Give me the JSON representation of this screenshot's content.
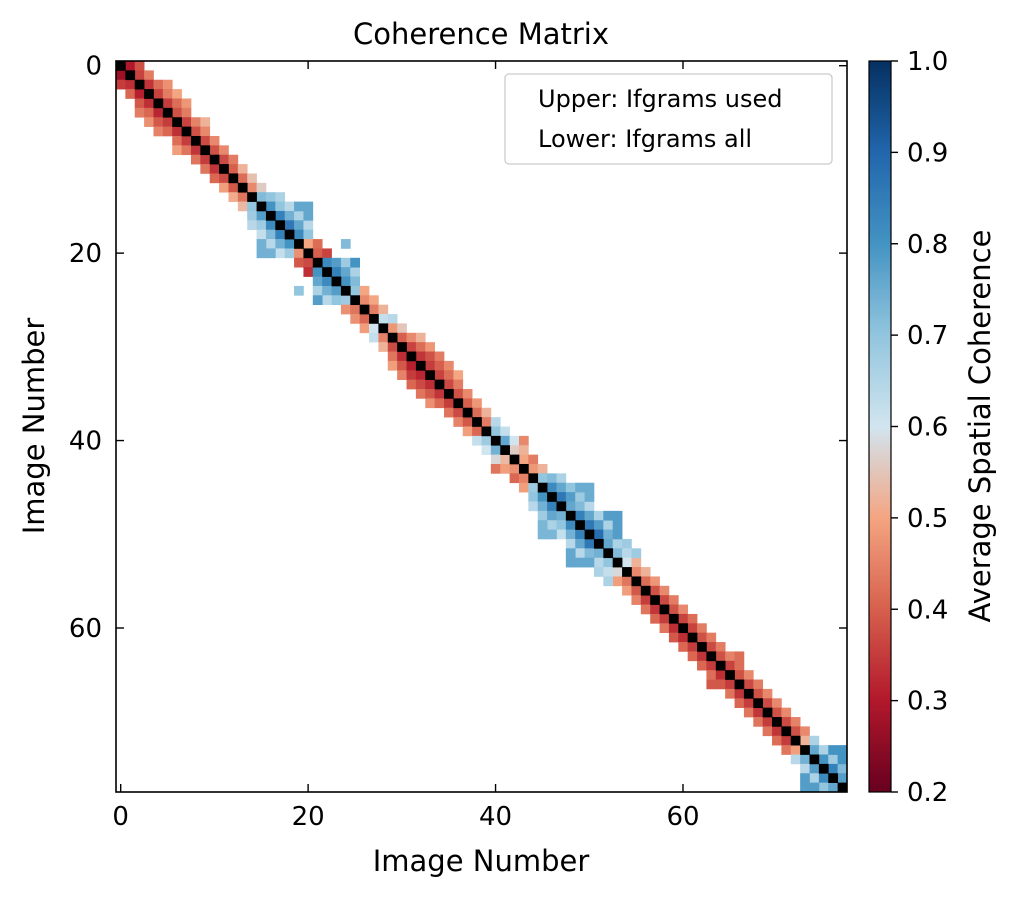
{
  "chart_data": {
    "type": "heatmap",
    "title": "Coherence Matrix",
    "xlabel": "Image Number",
    "ylabel": "Image Number",
    "n_images": 78,
    "xlim": [
      -0.5,
      77.5
    ],
    "ylim": [
      77.5,
      -0.5
    ],
    "x_ticks": [
      0,
      20,
      40,
      60
    ],
    "y_ticks": [
      0,
      20,
      40,
      60
    ],
    "x_tick_labels": [
      "0",
      "20",
      "40",
      "60"
    ],
    "y_tick_labels": [
      "0",
      "20",
      "40",
      "60"
    ],
    "legend": {
      "position": "top-right",
      "entries": [
        "Upper: Ifgrams used",
        "Lower: Ifgrams all"
      ]
    },
    "colorbar": {
      "label": "Average Spatial Coherence",
      "vmin": 0.2,
      "vmax": 1.0,
      "ticks": [
        0.2,
        0.3,
        0.4,
        0.5,
        0.6,
        0.7,
        0.8,
        0.9,
        1.0
      ],
      "tick_labels": [
        "0.2",
        "0.3",
        "0.4",
        "0.5",
        "0.6",
        "0.7",
        "0.8",
        "0.9",
        "1.0"
      ],
      "colormap": "RdBu"
    },
    "colors": {
      "diagonal": "#000000",
      "cmap_stops": [
        "#67001f",
        "#b2182b",
        "#d6604d",
        "#f4a582",
        "#d1e5f0",
        "#92c5de",
        "#4393c3",
        "#2166ac",
        "#053061"
      ]
    },
    "diagonal_value": 1.0,
    "high_coherence_blocks": [
      {
        "start": 15,
        "end": 20,
        "value": 0.76
      },
      {
        "start": 21,
        "end": 25,
        "value": 0.8
      },
      {
        "start": 27,
        "end": 29,
        "value": 0.64
      },
      {
        "start": 40,
        "end": 43,
        "value": 0.7
      },
      {
        "start": 45,
        "end": 50,
        "value": 0.75
      },
      {
        "start": 48,
        "end": 53,
        "value": 0.78
      },
      {
        "start": 52,
        "end": 55,
        "value": 0.68
      },
      {
        "start": 73,
        "end": 77,
        "value": 0.8
      }
    ],
    "pairs": [
      [
        0,
        1,
        0.3
      ],
      [
        0,
        2,
        0.38
      ],
      [
        1,
        2,
        0.36
      ],
      [
        1,
        3,
        0.44
      ],
      [
        2,
        3,
        0.34
      ],
      [
        2,
        4,
        0.42
      ],
      [
        2,
        5,
        0.47
      ],
      [
        3,
        4,
        0.36
      ],
      [
        3,
        5,
        0.44
      ],
      [
        3,
        6,
        0.5
      ],
      [
        4,
        5,
        0.35
      ],
      [
        4,
        6,
        0.42
      ],
      [
        4,
        7,
        0.48
      ],
      [
        5,
        6,
        0.38
      ],
      [
        5,
        7,
        0.44
      ],
      [
        6,
        7,
        0.36
      ],
      [
        6,
        8,
        0.45
      ],
      [
        6,
        9,
        0.52
      ],
      [
        7,
        8,
        0.38
      ],
      [
        7,
        9,
        0.46
      ],
      [
        8,
        9,
        0.37
      ],
      [
        8,
        10,
        0.46
      ],
      [
        9,
        10,
        0.38
      ],
      [
        9,
        11,
        0.46
      ],
      [
        10,
        11,
        0.37
      ],
      [
        10,
        12,
        0.44
      ],
      [
        11,
        12,
        0.4
      ],
      [
        11,
        13,
        0.52
      ],
      [
        12,
        13,
        0.42
      ],
      [
        12,
        14,
        0.54
      ],
      [
        13,
        14,
        0.46
      ],
      [
        13,
        15,
        0.56
      ],
      [
        14,
        15,
        0.72
      ],
      [
        14,
        16,
        0.7
      ],
      [
        14,
        17,
        0.66
      ],
      [
        15,
        16,
        0.8
      ],
      [
        15,
        17,
        0.7
      ],
      [
        15,
        18,
        0.64
      ],
      [
        16,
        17,
        0.84
      ],
      [
        16,
        18,
        0.74
      ],
      [
        16,
        19,
        0.66
      ],
      [
        17,
        18,
        0.86
      ],
      [
        17,
        19,
        0.76
      ],
      [
        17,
        20,
        0.64
      ],
      [
        18,
        19,
        0.82
      ],
      [
        18,
        20,
        0.7
      ],
      [
        19,
        20,
        0.5
      ],
      [
        19,
        21,
        0.42
      ],
      [
        19,
        24,
        0.72
      ],
      [
        20,
        21,
        0.4
      ],
      [
        20,
        22,
        0.36
      ],
      [
        21,
        22,
        0.82
      ],
      [
        21,
        23,
        0.78
      ],
      [
        21,
        24,
        0.68
      ],
      [
        22,
        23,
        0.84
      ],
      [
        22,
        24,
        0.76
      ],
      [
        22,
        25,
        0.66
      ],
      [
        23,
        24,
        0.8
      ],
      [
        23,
        25,
        0.72
      ],
      [
        24,
        25,
        0.7
      ],
      [
        24,
        26,
        0.5
      ],
      [
        25,
        26,
        0.46
      ],
      [
        25,
        27,
        0.5
      ],
      [
        26,
        27,
        0.44
      ],
      [
        26,
        28,
        0.52
      ],
      [
        27,
        28,
        0.62
      ],
      [
        27,
        29,
        0.64
      ],
      [
        28,
        29,
        0.48
      ],
      [
        28,
        30,
        0.55
      ],
      [
        29,
        30,
        0.4
      ],
      [
        29,
        31,
        0.46
      ],
      [
        29,
        32,
        0.52
      ],
      [
        30,
        31,
        0.36
      ],
      [
        30,
        32,
        0.42
      ],
      [
        30,
        33,
        0.48
      ],
      [
        31,
        32,
        0.34
      ],
      [
        31,
        33,
        0.38
      ],
      [
        31,
        34,
        0.44
      ],
      [
        32,
        33,
        0.35
      ],
      [
        32,
        34,
        0.4
      ],
      [
        32,
        35,
        0.46
      ],
      [
        33,
        34,
        0.36
      ],
      [
        33,
        35,
        0.42
      ],
      [
        33,
        36,
        0.5
      ],
      [
        34,
        35,
        0.37
      ],
      [
        34,
        36,
        0.44
      ],
      [
        35,
        36,
        0.38
      ],
      [
        35,
        37,
        0.46
      ],
      [
        36,
        37,
        0.4
      ],
      [
        36,
        38,
        0.48
      ],
      [
        37,
        38,
        0.42
      ],
      [
        37,
        39,
        0.52
      ],
      [
        38,
        39,
        0.44
      ],
      [
        38,
        40,
        0.64
      ],
      [
        39,
        40,
        0.7
      ],
      [
        39,
        41,
        0.62
      ],
      [
        40,
        41,
        0.76
      ],
      [
        40,
        42,
        0.6
      ],
      [
        40,
        43,
        0.46
      ],
      [
        41,
        42,
        0.56
      ],
      [
        41,
        43,
        0.52
      ],
      [
        42,
        43,
        0.5
      ],
      [
        42,
        44,
        0.44
      ],
      [
        43,
        44,
        0.48
      ],
      [
        43,
        45,
        0.52
      ],
      [
        44,
        45,
        0.7
      ],
      [
        44,
        46,
        0.72
      ],
      [
        44,
        47,
        0.66
      ],
      [
        45,
        46,
        0.82
      ],
      [
        45,
        47,
        0.76
      ],
      [
        45,
        48,
        0.7
      ],
      [
        46,
        47,
        0.86
      ],
      [
        46,
        48,
        0.78
      ],
      [
        46,
        49,
        0.68
      ],
      [
        47,
        48,
        0.76
      ],
      [
        47,
        49,
        0.72
      ],
      [
        47,
        50,
        0.64
      ],
      [
        48,
        49,
        0.84
      ],
      [
        48,
        50,
        0.76
      ],
      [
        48,
        51,
        0.66
      ],
      [
        49,
        50,
        0.86
      ],
      [
        49,
        51,
        0.78
      ],
      [
        49,
        52,
        0.66
      ],
      [
        50,
        51,
        0.88
      ],
      [
        50,
        52,
        0.74
      ],
      [
        51,
        52,
        0.76
      ],
      [
        51,
        53,
        0.66
      ],
      [
        51,
        54,
        0.68
      ],
      [
        52,
        53,
        0.72
      ],
      [
        52,
        54,
        0.64
      ],
      [
        53,
        54,
        0.6
      ],
      [
        53,
        55,
        0.52
      ],
      [
        54,
        55,
        0.46
      ],
      [
        54,
        56,
        0.52
      ],
      [
        55,
        56,
        0.42
      ],
      [
        55,
        57,
        0.48
      ],
      [
        56,
        57,
        0.38
      ],
      [
        56,
        58,
        0.46
      ],
      [
        57,
        58,
        0.37
      ],
      [
        57,
        59,
        0.44
      ],
      [
        58,
        59,
        0.38
      ],
      [
        58,
        60,
        0.46
      ],
      [
        59,
        60,
        0.36
      ],
      [
        59,
        61,
        0.42
      ],
      [
        60,
        61,
        0.36
      ],
      [
        60,
        62,
        0.44
      ],
      [
        61,
        62,
        0.38
      ],
      [
        61,
        63,
        0.44
      ],
      [
        62,
        63,
        0.37
      ],
      [
        62,
        64,
        0.44
      ],
      [
        63,
        64,
        0.38
      ],
      [
        63,
        65,
        0.45
      ],
      [
        63,
        66,
        0.42
      ],
      [
        64,
        65,
        0.36
      ],
      [
        64,
        66,
        0.42
      ],
      [
        65,
        66,
        0.38
      ],
      [
        65,
        67,
        0.46
      ],
      [
        66,
        67,
        0.37
      ],
      [
        66,
        68,
        0.44
      ],
      [
        67,
        68,
        0.38
      ],
      [
        67,
        69,
        0.46
      ],
      [
        68,
        69,
        0.37
      ],
      [
        68,
        70,
        0.46
      ],
      [
        69,
        70,
        0.38
      ],
      [
        69,
        71,
        0.46
      ],
      [
        70,
        71,
        0.37
      ],
      [
        70,
        72,
        0.45
      ],
      [
        71,
        72,
        0.38
      ],
      [
        71,
        73,
        0.46
      ],
      [
        72,
        73,
        0.52
      ],
      [
        72,
        74,
        0.66
      ],
      [
        73,
        74,
        0.76
      ],
      [
        73,
        75,
        0.66
      ],
      [
        74,
        75,
        0.8
      ],
      [
        74,
        76,
        0.68
      ],
      [
        75,
        76,
        0.84
      ],
      [
        75,
        77,
        0.72
      ],
      [
        76,
        77,
        0.78
      ]
    ]
  }
}
